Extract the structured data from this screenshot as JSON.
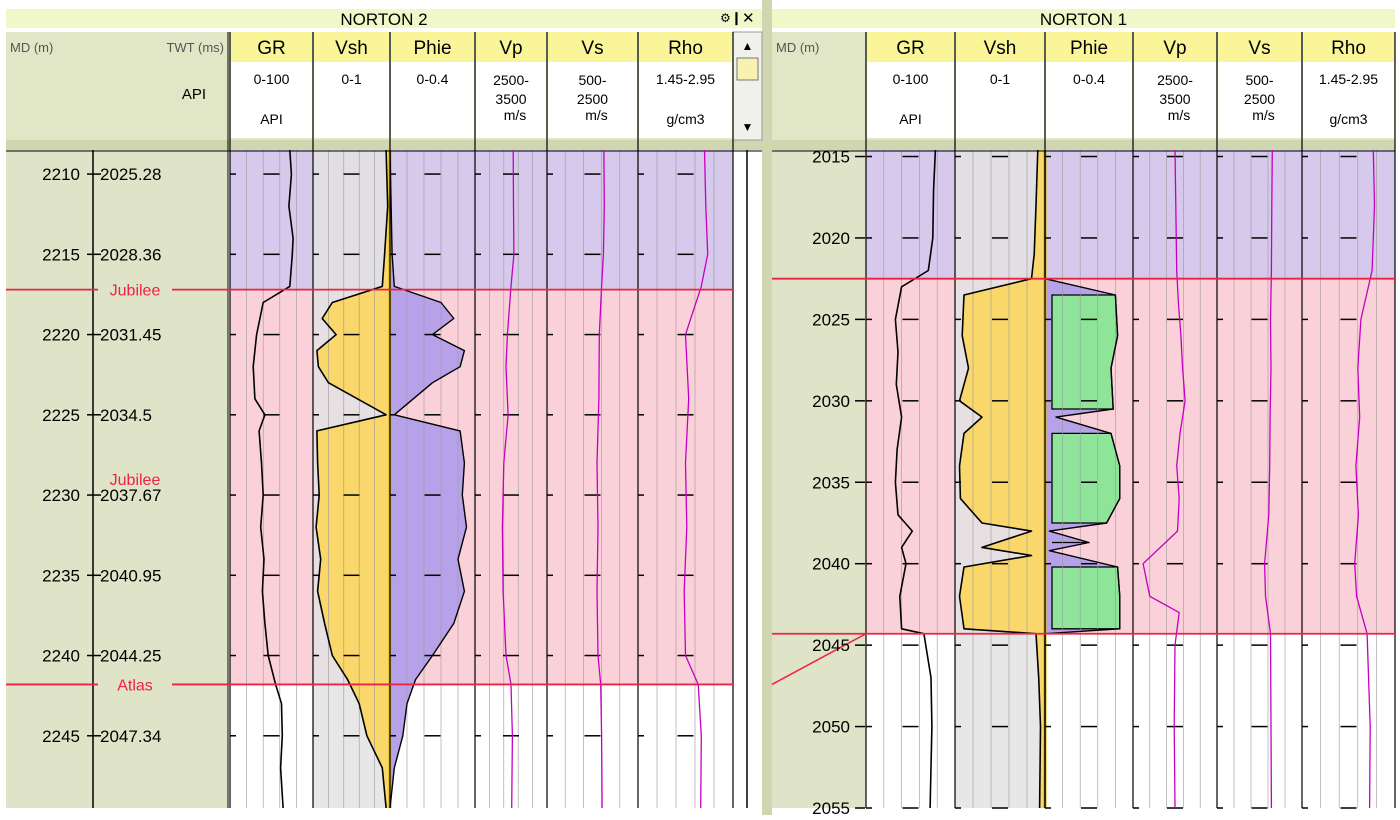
{
  "colors": {
    "header_bg": "#e1e7c6",
    "panel_bg": "#dfe3c7",
    "title_bar": "#f0f7c8",
    "col_header": "#f9f598",
    "zone_upper": "#d6c9ec",
    "zone_middle": "#fbd1d9",
    "zone_lower": "#ffffff",
    "marker": "#ee2244",
    "curve": "#000000",
    "log_curve": "#c400c0",
    "sand": "#f9d76a",
    "shale_fill": "#e3e3e3",
    "porosity_fill": "#b7a2ea",
    "hydrocarbon": "#8ee59a",
    "vsh_baseline": "#d4b000"
  },
  "chart_data": [
    {
      "type": "line",
      "title": "NORTON 2",
      "header_labels": {
        "md": "MD (m)",
        "twt": "TWT (ms)",
        "twt_unit": "API"
      },
      "tracks": [
        {
          "name": "GR",
          "scale": "0-100",
          "unit": "API"
        },
        {
          "name": "Vsh",
          "scale": "0-1",
          "unit": ""
        },
        {
          "name": "Phie",
          "scale": "0-0.4",
          "unit": ""
        },
        {
          "name": "Vp",
          "scale": "2500-3500",
          "unit": "m/s"
        },
        {
          "name": "Vs",
          "scale": "500-2500",
          "unit": "m/s"
        },
        {
          "name": "Rho",
          "scale": "1.45-2.95",
          "unit": "g/cm3"
        }
      ],
      "md_ticks": [
        "2210",
        "2215",
        "2220",
        "2225",
        "2230",
        "2235",
        "2240",
        "2245"
      ],
      "twt_ticks": [
        "2025.28",
        "2028.36",
        "2031.45",
        "2034.5",
        "2037.67",
        "2040.95",
        "2044.25",
        "2047.34"
      ],
      "md_range": [
        2208.5,
        2249.5
      ],
      "markers": [
        {
          "name": "Jubilee",
          "md": 2217.2
        },
        {
          "name": "Jubilee",
          "md": 2229.0,
          "label_only": true
        },
        {
          "name": "Atlas",
          "md": 2241.8
        }
      ],
      "zones": [
        {
          "from": 2208.5,
          "to": 2217.2,
          "fill": "upper"
        },
        {
          "from": 2217.2,
          "to": 2241.8,
          "fill": "middle"
        },
        {
          "from": 2241.8,
          "to": 2249.5,
          "fill": "lower"
        }
      ],
      "sand_intervals": [
        [
          2217.2,
          2225.0
        ],
        [
          2225.0,
          2241.8
        ]
      ],
      "curves": {
        "GR": [
          [
            2208.5,
            72
          ],
          [
            2210,
            74
          ],
          [
            2212,
            71
          ],
          [
            2214,
            76
          ],
          [
            2215,
            75
          ],
          [
            2217,
            72
          ],
          [
            2218,
            40
          ],
          [
            2220,
            32
          ],
          [
            2222,
            28
          ],
          [
            2224,
            30
          ],
          [
            2225,
            42
          ],
          [
            2226,
            35
          ],
          [
            2228,
            38
          ],
          [
            2230,
            40
          ],
          [
            2232,
            37
          ],
          [
            2234,
            41
          ],
          [
            2236,
            39
          ],
          [
            2238,
            42
          ],
          [
            2240,
            46
          ],
          [
            2241.8,
            55
          ],
          [
            2243,
            62
          ],
          [
            2245,
            63
          ],
          [
            2247,
            61
          ],
          [
            2249.5,
            64
          ]
        ],
        "Vsh": [
          [
            2208.5,
            0.95
          ],
          [
            2212,
            0.97
          ],
          [
            2215,
            0.93
          ],
          [
            2217,
            0.9
          ],
          [
            2218,
            0.25
          ],
          [
            2219,
            0.12
          ],
          [
            2220,
            0.3
          ],
          [
            2221,
            0.05
          ],
          [
            2222,
            0.07
          ],
          [
            2223,
            0.2
          ],
          [
            2225,
            0.95
          ],
          [
            2226,
            0.05
          ],
          [
            2228,
            0.06
          ],
          [
            2230,
            0.08
          ],
          [
            2232,
            0.04
          ],
          [
            2234,
            0.1
          ],
          [
            2236,
            0.06
          ],
          [
            2238,
            0.15
          ],
          [
            2240,
            0.25
          ],
          [
            2241.5,
            0.45
          ],
          [
            2243,
            0.6
          ],
          [
            2245,
            0.7
          ],
          [
            2247,
            0.9
          ],
          [
            2249.5,
            0.95
          ]
        ],
        "Phie": [
          [
            2208.5,
            0.0
          ],
          [
            2215,
            0.01
          ],
          [
            2217,
            0.02
          ],
          [
            2218,
            0.24
          ],
          [
            2219,
            0.3
          ],
          [
            2220,
            0.2
          ],
          [
            2221,
            0.35
          ],
          [
            2222,
            0.33
          ],
          [
            2223,
            0.2
          ],
          [
            2225,
            0.02
          ],
          [
            2226,
            0.33
          ],
          [
            2228,
            0.35
          ],
          [
            2230,
            0.34
          ],
          [
            2232,
            0.36
          ],
          [
            2234,
            0.32
          ],
          [
            2236,
            0.35
          ],
          [
            2238,
            0.3
          ],
          [
            2240,
            0.2
          ],
          [
            2241.5,
            0.12
          ],
          [
            2243,
            0.08
          ],
          [
            2245,
            0.06
          ],
          [
            2247,
            0.02
          ],
          [
            2249.5,
            0.0
          ]
        ],
        "Vp": [
          [
            2208.5,
            3030
          ],
          [
            2212,
            3035
          ],
          [
            2215,
            3040
          ],
          [
            2217,
            3000
          ],
          [
            2220,
            2950
          ],
          [
            2222,
            2930
          ],
          [
            2225,
            2960
          ],
          [
            2228,
            2900
          ],
          [
            2232,
            2880
          ],
          [
            2236,
            2890
          ],
          [
            2240,
            2930
          ],
          [
            2241.8,
            3000
          ],
          [
            2245,
            3020
          ],
          [
            2249.5,
            3010
          ]
        ],
        "Vs": [
          [
            2208.5,
            1750
          ],
          [
            2212,
            1760
          ],
          [
            2215,
            1740
          ],
          [
            2217,
            1700
          ],
          [
            2220,
            1650
          ],
          [
            2224,
            1640
          ],
          [
            2228,
            1600
          ],
          [
            2232,
            1620
          ],
          [
            2236,
            1600
          ],
          [
            2240,
            1620
          ],
          [
            2241.8,
            1680
          ],
          [
            2245,
            1700
          ],
          [
            2249.5,
            1710
          ]
        ],
        "Rho": [
          [
            2208.5,
            2.5
          ],
          [
            2212,
            2.52
          ],
          [
            2215,
            2.55
          ],
          [
            2217,
            2.45
          ],
          [
            2220,
            2.2
          ],
          [
            2224,
            2.25
          ],
          [
            2228,
            2.2
          ],
          [
            2232,
            2.22
          ],
          [
            2236,
            2.18
          ],
          [
            2240,
            2.2
          ],
          [
            2241.8,
            2.4
          ],
          [
            2245,
            2.45
          ],
          [
            2249.5,
            2.44
          ]
        ]
      }
    },
    {
      "type": "line",
      "title": "NORTON 1",
      "header_labels": {
        "md": "MD (m)"
      },
      "tracks": [
        {
          "name": "GR",
          "scale": "0-100",
          "unit": "API"
        },
        {
          "name": "Vsh",
          "scale": "0-1",
          "unit": ""
        },
        {
          "name": "Phie",
          "scale": "0-0.4",
          "unit": ""
        },
        {
          "name": "Vp",
          "scale": "2500-3500",
          "unit": "m/s"
        },
        {
          "name": "Vs",
          "scale": "500-2500",
          "unit": "m/s"
        },
        {
          "name": "Rho",
          "scale": "1.45-2.95",
          "unit": "g/cm3"
        }
      ],
      "md_ticks": [
        "2015",
        "2020",
        "2025",
        "2030",
        "2035",
        "2040",
        "2045",
        "2050",
        "2055"
      ],
      "md_range": [
        2014.6,
        2055.0
      ],
      "markers": [
        {
          "name": "",
          "md": 2022.5
        },
        {
          "name": "",
          "md": 2044.3
        }
      ],
      "zones": [
        {
          "from": 2014.6,
          "to": 2022.5,
          "fill": "upper"
        },
        {
          "from": 2022.5,
          "to": 2044.3,
          "fill": "middle"
        },
        {
          "from": 2044.3,
          "to": 2055.0,
          "fill": "lower"
        }
      ],
      "hydrocarbon_intervals": [
        [
          2023.5,
          2030.5
        ],
        [
          2031.5,
          2037.5
        ],
        [
          2038.5,
          2039.0
        ],
        [
          2040.2,
          2044.0
        ]
      ],
      "curves": {
        "GR": [
          [
            2014.6,
            78
          ],
          [
            2017,
            76
          ],
          [
            2020,
            75
          ],
          [
            2022,
            70
          ],
          [
            2023,
            40
          ],
          [
            2025,
            33
          ],
          [
            2027,
            36
          ],
          [
            2029,
            34
          ],
          [
            2031,
            40
          ],
          [
            2033,
            35
          ],
          [
            2035,
            33
          ],
          [
            2037,
            36
          ],
          [
            2038,
            52
          ],
          [
            2039,
            40
          ],
          [
            2040,
            45
          ],
          [
            2042,
            38
          ],
          [
            2044,
            40
          ],
          [
            2044.3,
            65
          ],
          [
            2047,
            73
          ],
          [
            2050,
            74
          ],
          [
            2055,
            72
          ]
        ],
        "Vsh": [
          [
            2014.6,
            0.92
          ],
          [
            2018,
            0.9
          ],
          [
            2021,
            0.88
          ],
          [
            2022.5,
            0.85
          ],
          [
            2023.5,
            0.1
          ],
          [
            2026,
            0.08
          ],
          [
            2028,
            0.15
          ],
          [
            2030,
            0.05
          ],
          [
            2031,
            0.3
          ],
          [
            2032,
            0.1
          ],
          [
            2034,
            0.05
          ],
          [
            2036,
            0.06
          ],
          [
            2037.5,
            0.3
          ],
          [
            2038,
            0.85
          ],
          [
            2039,
            0.3
          ],
          [
            2039.5,
            0.85
          ],
          [
            2040.2,
            0.1
          ],
          [
            2042,
            0.05
          ],
          [
            2044,
            0.1
          ],
          [
            2044.3,
            0.9
          ],
          [
            2047,
            0.93
          ],
          [
            2050,
            0.95
          ],
          [
            2055,
            0.94
          ]
        ],
        "Phie": [
          [
            2014.6,
            0.0
          ],
          [
            2022.5,
            0.0
          ],
          [
            2023.5,
            0.32
          ],
          [
            2026,
            0.33
          ],
          [
            2028,
            0.3
          ],
          [
            2030.5,
            0.31
          ],
          [
            2031,
            0.05
          ],
          [
            2032,
            0.3
          ],
          [
            2034,
            0.34
          ],
          [
            2036,
            0.34
          ],
          [
            2037.5,
            0.28
          ],
          [
            2038,
            0.02
          ],
          [
            2038.7,
            0.2
          ],
          [
            2039.2,
            0.02
          ],
          [
            2040.2,
            0.33
          ],
          [
            2042,
            0.34
          ],
          [
            2044,
            0.34
          ],
          [
            2044.3,
            0.0
          ],
          [
            2055,
            0.0
          ]
        ],
        "Vp": [
          [
            2014.6,
            3000
          ],
          [
            2018,
            3010
          ],
          [
            2022,
            3020
          ],
          [
            2024,
            3040
          ],
          [
            2026,
            3070
          ],
          [
            2028,
            3090
          ],
          [
            2030,
            3120
          ],
          [
            2032,
            3060
          ],
          [
            2034,
            3020
          ],
          [
            2036,
            3050
          ],
          [
            2038,
            3030
          ],
          [
            2040,
            2620
          ],
          [
            2042,
            2700
          ],
          [
            2043,
            3050
          ],
          [
            2045,
            3000
          ],
          [
            2050,
            2990
          ],
          [
            2055,
            3000
          ]
        ],
        "Vs": [
          [
            2014.6,
            1800
          ],
          [
            2018,
            1790
          ],
          [
            2022,
            1780
          ],
          [
            2025,
            1760
          ],
          [
            2028,
            1770
          ],
          [
            2031,
            1750
          ],
          [
            2034,
            1740
          ],
          [
            2037,
            1720
          ],
          [
            2040,
            1620
          ],
          [
            2042,
            1640
          ],
          [
            2044.3,
            1760
          ],
          [
            2050,
            1770
          ],
          [
            2055,
            1780
          ]
        ],
        "Rho": [
          [
            2014.6,
            2.6
          ],
          [
            2018,
            2.62
          ],
          [
            2022,
            2.58
          ],
          [
            2025,
            2.4
          ],
          [
            2028,
            2.35
          ],
          [
            2031,
            2.38
          ],
          [
            2034,
            2.32
          ],
          [
            2037,
            2.36
          ],
          [
            2040,
            2.3
          ],
          [
            2042,
            2.33
          ],
          [
            2044.3,
            2.5
          ],
          [
            2050,
            2.55
          ],
          [
            2055,
            2.54
          ]
        ]
      }
    }
  ]
}
